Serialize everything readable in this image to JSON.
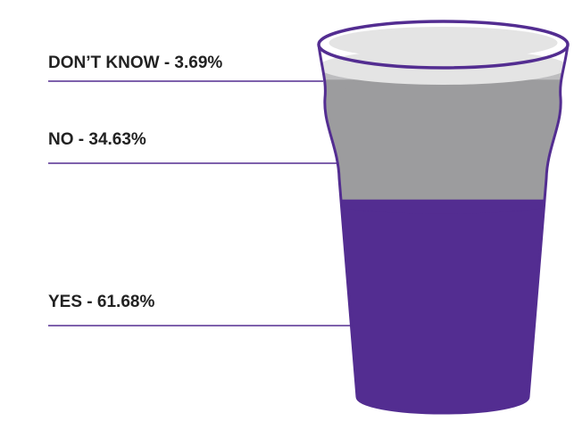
{
  "chart_data": {
    "type": "pictorial",
    "categories": [
      "DON’T KNOW - 3.69%",
      "NO - 34.63%",
      "YES - 61.68%"
    ],
    "values": [
      3.69,
      34.63,
      61.68
    ],
    "colors": [
      "#bdbdbf",
      "#9c9c9e",
      "#532d91"
    ]
  }
}
